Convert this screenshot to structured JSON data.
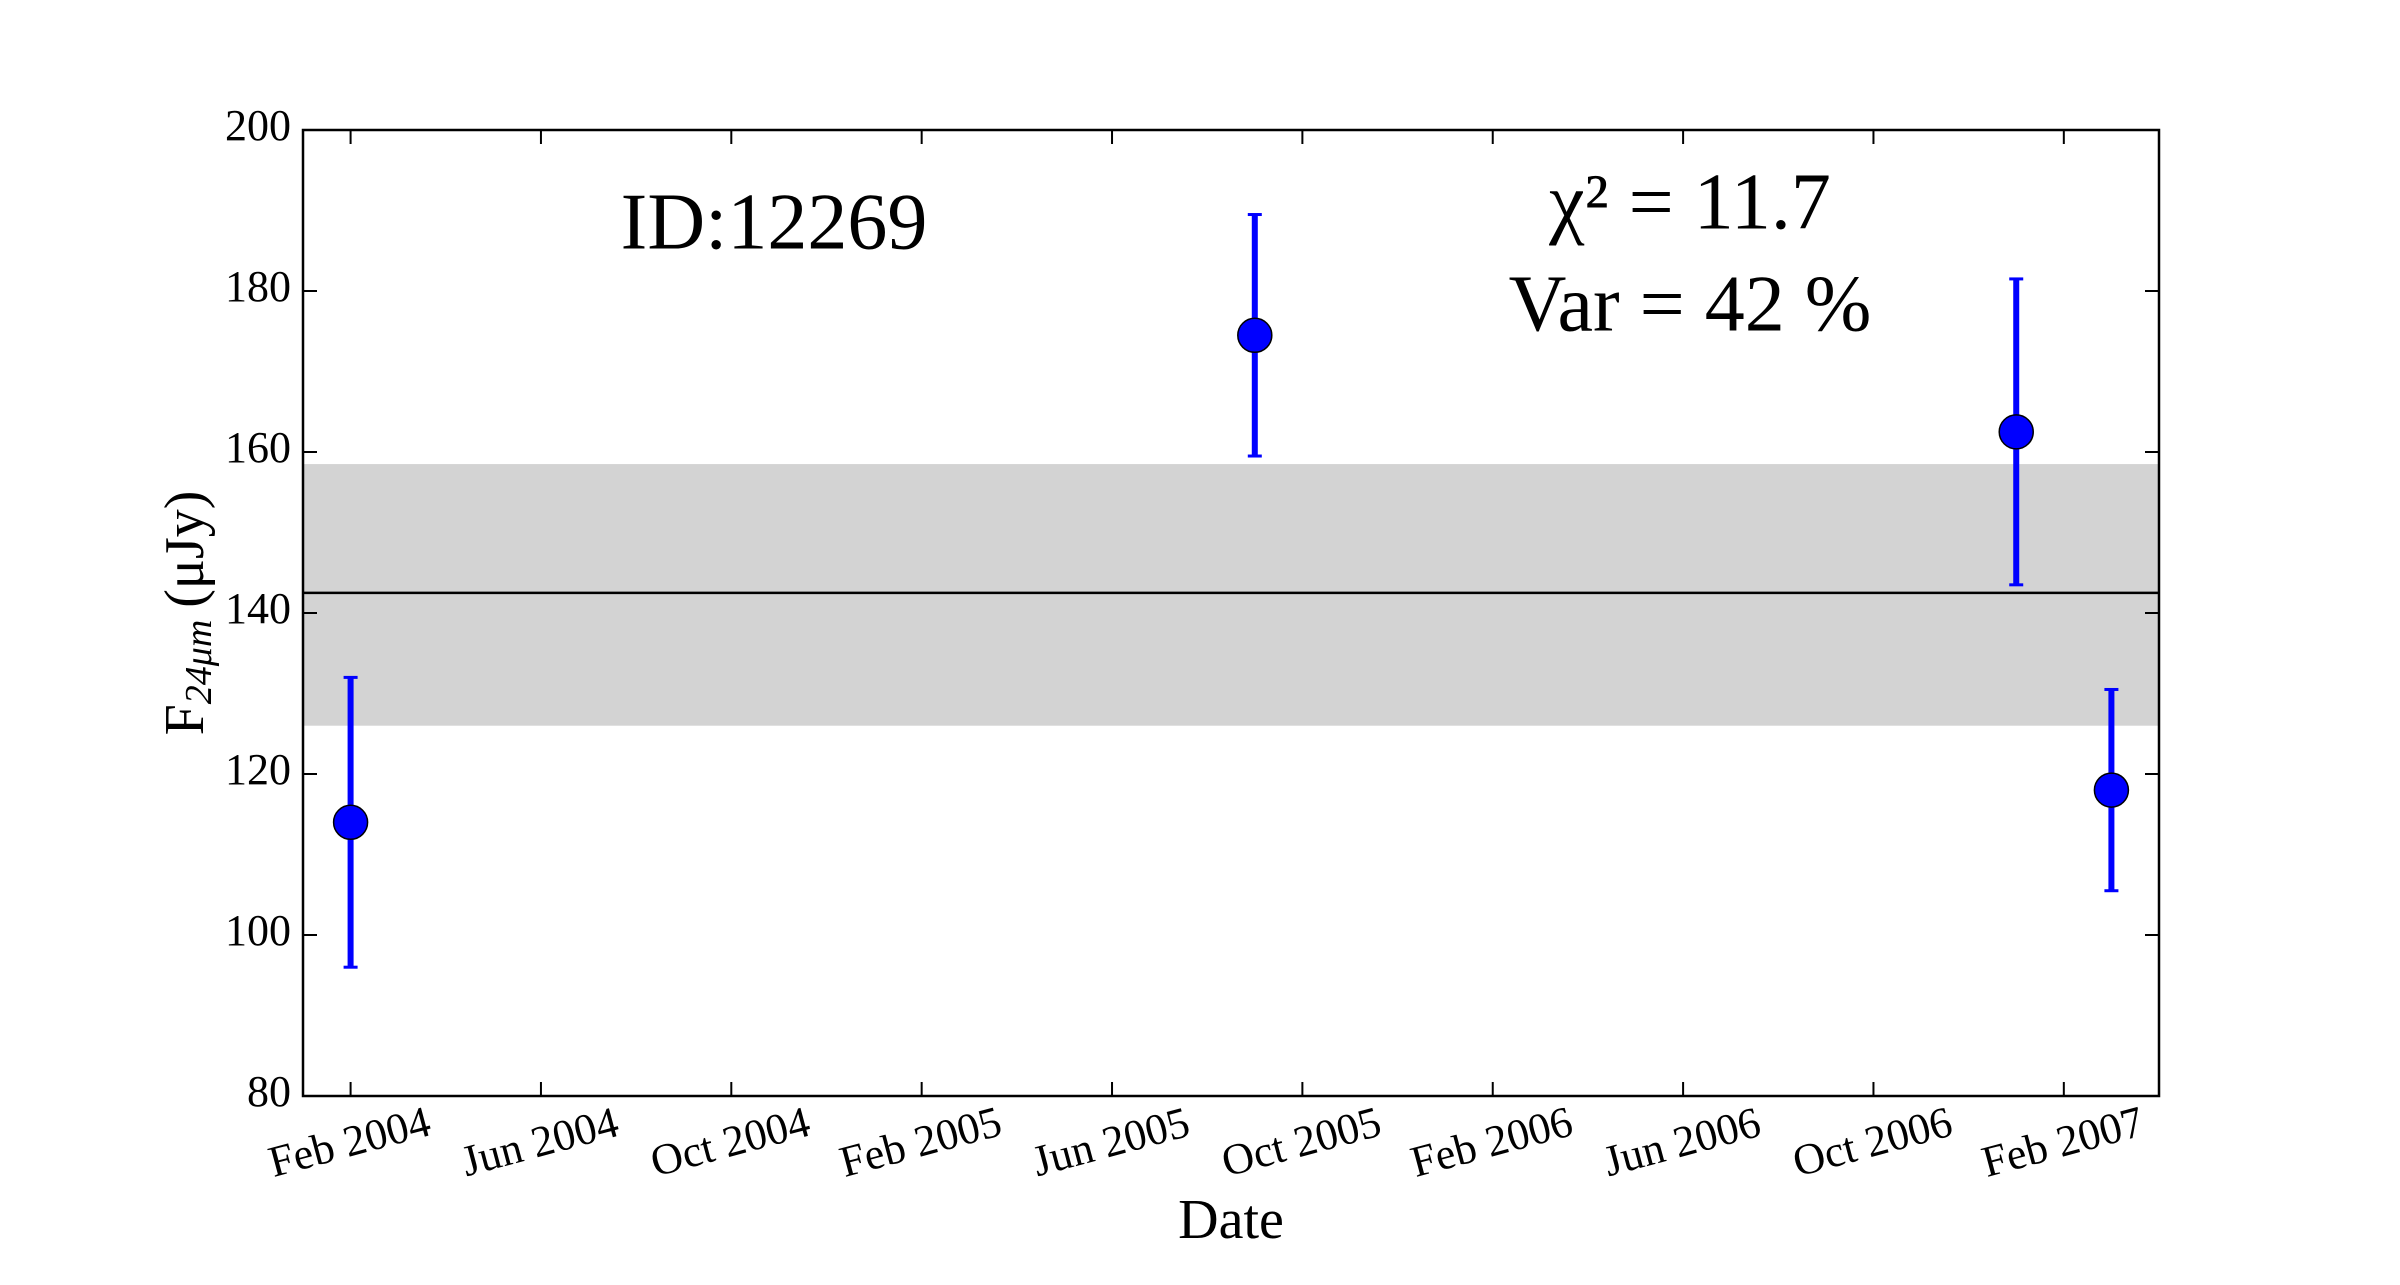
{
  "chart_data": {
    "type": "errorbar_scatter",
    "annotations": [
      "ID:12269",
      "χ² = 11.7",
      "Var = 42 %"
    ],
    "xlabel": "Date",
    "ylabel": {
      "main": "F",
      "sub": "24μm",
      "unit": "(μJy)"
    },
    "x": [
      "2004-02",
      "2005-09",
      "2007-01",
      "2007-03"
    ],
    "series": [
      {
        "color": "#0000ff",
        "values": [
          114,
          174.5,
          162.5,
          118
        ],
        "errors": [
          18,
          15,
          19,
          12.5
        ]
      }
    ],
    "mean": 142.5,
    "band": [
      126,
      158.5
    ],
    "band_color": "#d3d3d3",
    "xlim": [
      "2004-01",
      "2007-04"
    ],
    "xticks": [
      {
        "value": "2004-02",
        "label": "Feb 2004"
      },
      {
        "value": "2004-06",
        "label": "Jun 2004"
      },
      {
        "value": "2004-10",
        "label": "Oct 2004"
      },
      {
        "value": "2005-02",
        "label": "Feb 2005"
      },
      {
        "value": "2005-06",
        "label": "Jun 2005"
      },
      {
        "value": "2005-10",
        "label": "Oct 2005"
      },
      {
        "value": "2006-02",
        "label": "Feb 2006"
      },
      {
        "value": "2006-06",
        "label": "Jun 2006"
      },
      {
        "value": "2006-10",
        "label": "Oct 2006"
      },
      {
        "value": "2007-02",
        "label": "Feb 2007"
      }
    ],
    "ylim": [
      80,
      200
    ],
    "yticks": [
      80,
      100,
      120,
      140,
      160,
      180,
      200
    ]
  }
}
